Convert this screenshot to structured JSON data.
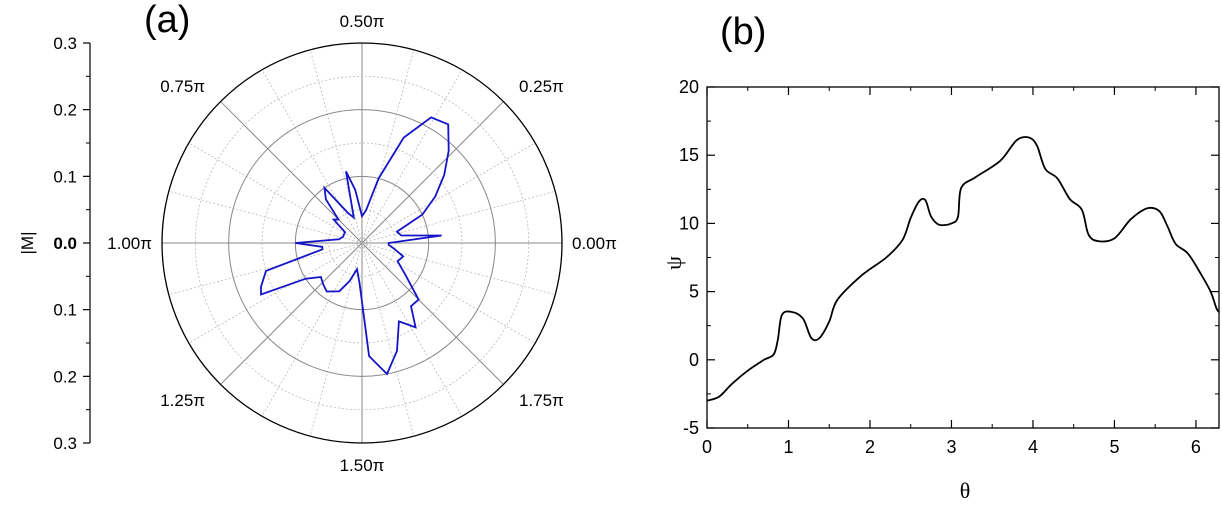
{
  "chart_data": [
    {
      "panel_label": "(a)",
      "type": "polar-line",
      "radial_axis": {
        "label": "|M|",
        "ticks": [
          "0.3",
          "0.2",
          "0.1",
          "0.0",
          "0.1",
          "0.2",
          "0.3"
        ],
        "range": [
          0,
          0.3
        ],
        "grid_circles": [
          0.1,
          0.2
        ]
      },
      "angular_ticks": [
        "0.00π",
        "0.25π",
        "0.50π",
        "0.75π",
        "1.00π",
        "1.25π",
        "1.50π",
        "1.75π"
      ],
      "series": [
        {
          "color": "#1414c8",
          "points": [
            [
              0.0,
              0.04
            ],
            [
              0.03,
              0.12
            ],
            [
              0.06,
              0.06
            ],
            [
              0.1,
              0.055
            ],
            [
              0.14,
              0.1
            ],
            [
              0.18,
              0.13
            ],
            [
              0.22,
              0.16
            ],
            [
              0.26,
              0.19
            ],
            [
              0.3,
              0.22
            ],
            [
              0.34,
              0.215
            ],
            [
              0.38,
              0.17
            ],
            [
              0.42,
              0.1
            ],
            [
              0.46,
              0.05
            ],
            [
              0.5,
              0.04
            ],
            [
              0.54,
              0.08
            ],
            [
              0.57,
              0.11
            ],
            [
              0.6,
              0.04
            ],
            [
              0.64,
              0.05
            ],
            [
              0.69,
              0.1
            ],
            [
              0.72,
              0.085
            ],
            [
              0.75,
              0.05
            ],
            [
              0.78,
              0.055
            ],
            [
              0.82,
              0.03
            ],
            [
              0.86,
              0.03
            ],
            [
              0.9,
              0.03
            ],
            [
              0.95,
              0.035
            ],
            [
              1.0,
              0.1
            ],
            [
              1.03,
              0.06
            ],
            [
              1.05,
              0.06
            ],
            [
              1.09,
              0.15
            ],
            [
              1.13,
              0.165
            ],
            [
              1.15,
              0.17
            ],
            [
              1.18,
              0.1
            ],
            [
              1.22,
              0.08
            ],
            [
              1.26,
              0.085
            ],
            [
              1.3,
              0.09
            ],
            [
              1.36,
              0.08
            ],
            [
              1.4,
              0.06
            ],
            [
              1.44,
              0.04
            ],
            [
              1.48,
              0.06
            ],
            [
              1.52,
              0.17
            ],
            [
              1.56,
              0.2
            ],
            [
              1.6,
              0.17
            ],
            [
              1.64,
              0.13
            ],
            [
              1.68,
              0.15
            ],
            [
              1.71,
              0.12
            ],
            [
              1.75,
              0.12
            ],
            [
              1.8,
              0.08
            ],
            [
              1.85,
              0.06
            ],
            [
              1.9,
              0.065
            ],
            [
              1.94,
              0.05
            ],
            [
              1.98,
              0.04
            ],
            [
              2.0,
              0.04
            ]
          ]
        }
      ]
    },
    {
      "panel_label": "(b)",
      "type": "line",
      "xlabel": "θ",
      "ylabel": "ψ",
      "xlim": [
        0,
        6.283
      ],
      "ylim": [
        -5,
        20
      ],
      "xticks": [
        0,
        1,
        2,
        3,
        4,
        5,
        6
      ],
      "yticks": [
        -5,
        0,
        5,
        10,
        15,
        20
      ],
      "series": [
        {
          "color": "#000000",
          "points": [
            [
              0.0,
              -3.0
            ],
            [
              0.15,
              -2.7
            ],
            [
              0.3,
              -1.8
            ],
            [
              0.5,
              -0.8
            ],
            [
              0.7,
              0.0
            ],
            [
              0.82,
              0.4
            ],
            [
              0.87,
              1.5
            ],
            [
              0.92,
              3.3
            ],
            [
              1.05,
              3.5
            ],
            [
              1.18,
              3.0
            ],
            [
              1.28,
              1.6
            ],
            [
              1.38,
              1.6
            ],
            [
              1.5,
              2.8
            ],
            [
              1.6,
              4.4
            ],
            [
              1.9,
              6.2
            ],
            [
              2.2,
              7.5
            ],
            [
              2.4,
              8.8
            ],
            [
              2.5,
              10.4
            ],
            [
              2.6,
              11.6
            ],
            [
              2.68,
              11.7
            ],
            [
              2.75,
              10.5
            ],
            [
              2.85,
              9.9
            ],
            [
              3.0,
              10.0
            ],
            [
              3.08,
              10.5
            ],
            [
              3.12,
              12.6
            ],
            [
              3.3,
              13.4
            ],
            [
              3.6,
              14.6
            ],
            [
              3.8,
              16.1
            ],
            [
              3.95,
              16.3
            ],
            [
              4.05,
              15.7
            ],
            [
              4.15,
              14.0
            ],
            [
              4.3,
              13.3
            ],
            [
              4.45,
              11.8
            ],
            [
              4.6,
              11.0
            ],
            [
              4.68,
              9.2
            ],
            [
              4.8,
              8.7
            ],
            [
              5.0,
              8.9
            ],
            [
              5.2,
              10.3
            ],
            [
              5.4,
              11.1
            ],
            [
              5.55,
              10.9
            ],
            [
              5.65,
              9.8
            ],
            [
              5.75,
              8.5
            ],
            [
              5.9,
              7.8
            ],
            [
              6.05,
              6.4
            ],
            [
              6.18,
              5.0
            ],
            [
              6.25,
              3.8
            ],
            [
              6.283,
              3.5
            ]
          ]
        }
      ]
    }
  ]
}
